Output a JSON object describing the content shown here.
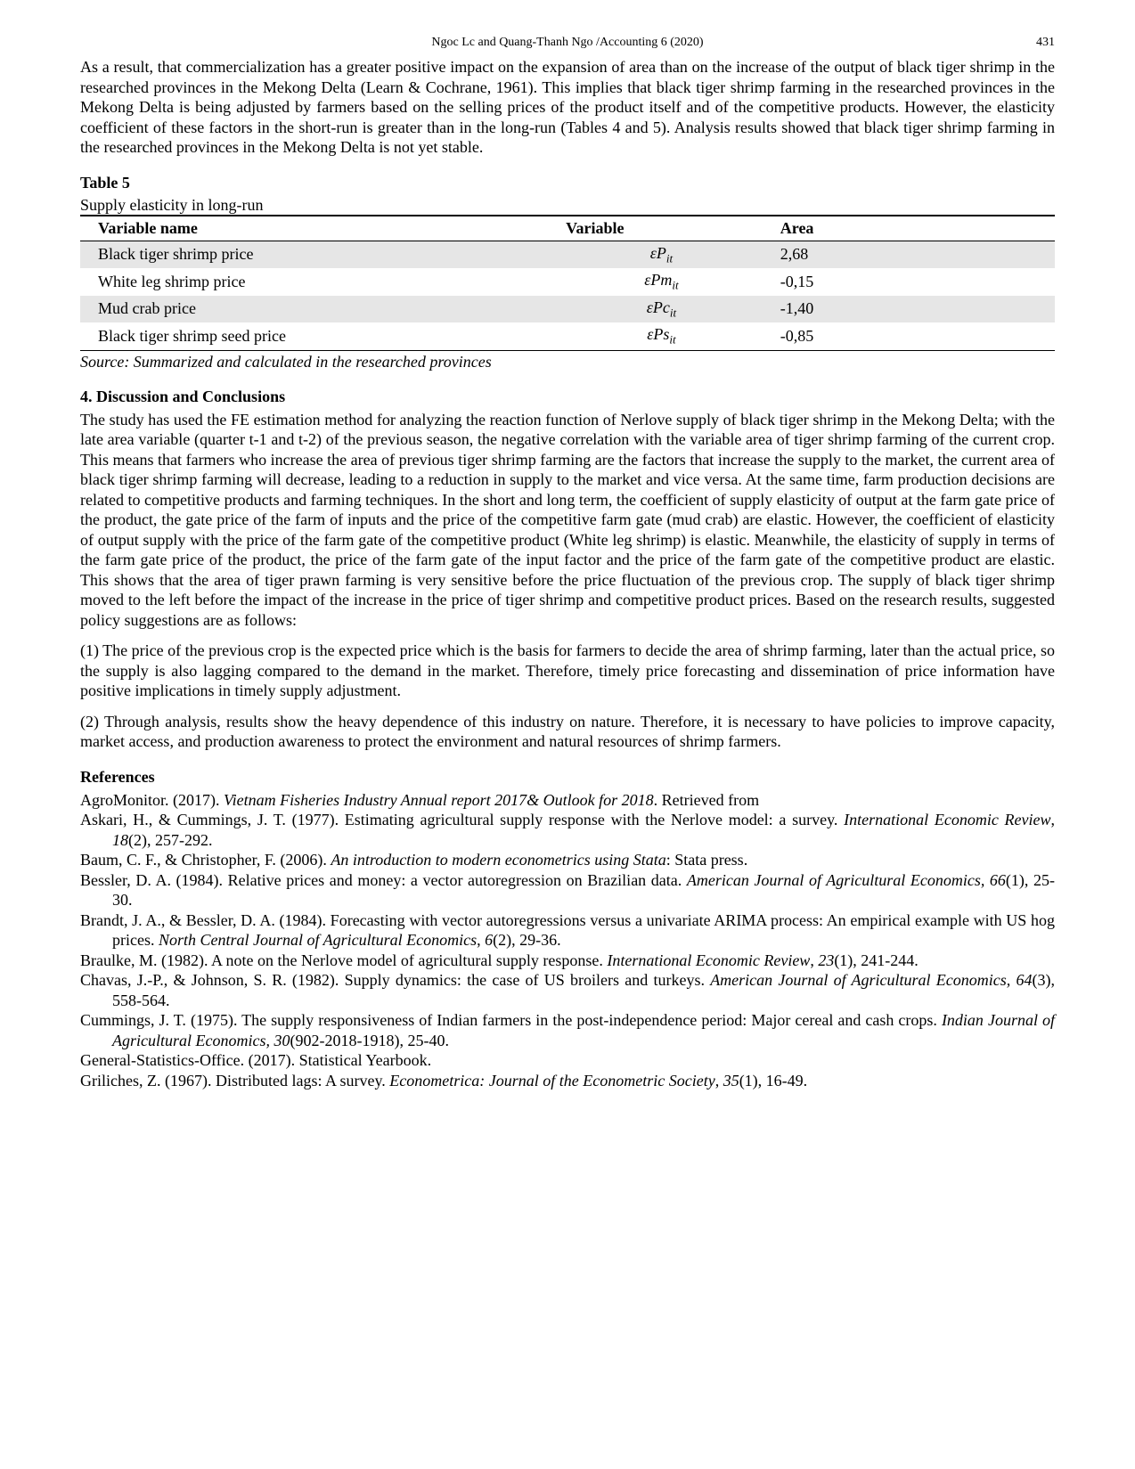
{
  "header": {
    "running": "Ngoc Lc and Quang-Thanh Ngo /Accounting 6 (2020)",
    "page": "431"
  },
  "para_intro": "As a result, that commercialization has a greater positive impact on the expansion of area than on the increase of the output of black tiger shrimp in the researched provinces in the Mekong Delta (Learn & Cochrane, 1961). This implies that black tiger shrimp farming in the researched provinces in the Mekong Delta is being adjusted by farmers based on the selling prices of the product itself and of the competitive products. However, the elasticity coefficient of these factors in the short-run is greater than in the long-run (Tables 4 and 5). Analysis results showed that black tiger shrimp farming in the researched provinces in the Mekong Delta is not yet stable.",
  "table5": {
    "label": "Table 5",
    "subcaption": "Supply elasticity in long-run",
    "headers": {
      "c1": "Variable name",
      "c2": "Variable",
      "c3": "Area"
    },
    "rows": [
      {
        "name": "Black tiger shrimp price",
        "sym_prefix": "ε",
        "sym_main": "P",
        "sym_sub": "it",
        "area": "2,68",
        "striped": true
      },
      {
        "name": "White leg shrimp price",
        "sym_prefix": "ε",
        "sym_main": "Pm",
        "sym_sub": "it",
        "area": "-0,15",
        "striped": false
      },
      {
        "name": "Mud crab price",
        "sym_prefix": "ε",
        "sym_main": "Pc",
        "sym_sub": "it",
        "area": "-1,40",
        "striped": true
      },
      {
        "name": "Black tiger shrimp seed price",
        "sym_prefix": "ε",
        "sym_main": "Ps",
        "sym_sub": "it",
        "area": "-0,85",
        "striped": false
      }
    ],
    "source": "Source: Summarized and calculated in the researched provinces",
    "stripe_color": "#e6e6e6",
    "border_color": "#000000"
  },
  "sections": {
    "discussion_title": "4. Discussion and Conclusions",
    "references_title": "References"
  },
  "discussion_p1": "The study has used the FE estimation method for analyzing the reaction function of Nerlove supply of black tiger shrimp in the Mekong Delta; with the late area variable (quarter t-1 and t-2) of the previous season, the negative correlation with the variable area of tiger shrimp farming of the current crop. This means that farmers who increase the area of previous tiger shrimp farming are the factors that increase the supply to the market, the current area of black tiger shrimp farming will decrease, leading to a reduction in supply to the market and vice versa. At the same time, farm production decisions are related to competitive products and farming techniques. In the short and long term, the coefficient of supply elasticity of output at the farm gate price of the product, the gate price of the farm of inputs and the price of the competitive farm gate (mud crab) are elastic. However, the coefficient of elasticity of output supply with the price of the farm gate of the competitive product (White leg shrimp) is elastic. Meanwhile, the elasticity of supply in terms of the farm gate price of the product, the price of the farm gate of the input factor and the price of the farm gate of the competitive product are elastic. This shows that the area of tiger prawn farming is very sensitive before the price fluctuation of the previous crop. The supply of black tiger shrimp moved to the left before the impact of the increase in the price of tiger shrimp and competitive product prices. Based on the research results, suggested policy suggestions are as follows:",
  "discussion_p2": "(1) The price of the previous crop is the expected price which is the basis for farmers to decide the area of shrimp farming, later than the actual price, so the supply is also lagging compared to the demand in the market. Therefore, timely price forecasting and dissemination of price information have positive implications in timely supply adjustment.",
  "discussion_p3": "(2) Through analysis, results show the heavy dependence of this industry on nature. Therefore, it is necessary to have policies to improve capacity, market access, and production awareness to protect the environment and natural resources of shrimp farmers.",
  "references": [
    {
      "pre": "AgroMonitor. (2017). ",
      "ital": "Vietnam Fisheries Industry Annual report 2017& Outlook for 2018",
      "post": ". Retrieved from"
    },
    {
      "pre": "Askari, H., & Cummings, J. T. (1977). Estimating agricultural supply response with the Nerlove model: a survey. ",
      "ital": "International Economic Review",
      "post": ", ",
      "ital2": "18",
      "post2": "(2), 257-292."
    },
    {
      "pre": "Baum, C. F., & Christopher, F. (2006). ",
      "ital": "An introduction to modern econometrics using Stata",
      "post": ": Stata press."
    },
    {
      "pre": "Bessler, D. A. (1984). Relative prices and money: a vector autoregression on Brazilian data. ",
      "ital": "American Journal of Agricultural Economics, 66",
      "post": "(1), 25-30."
    },
    {
      "pre": "Brandt, J. A., & Bessler, D. A. (1984). Forecasting with vector autoregressions versus a univariate ARIMA process: An empirical example with US hog prices. ",
      "ital": "North Central Journal of Agricultural Economics",
      "post": ", ",
      "ital2": "6",
      "post2": "(2), 29-36."
    },
    {
      "pre": "Braulke, M. (1982). A note on the Nerlove model of agricultural supply response. ",
      "ital": "International Economic Review",
      "post": ", ",
      "ital2": "23",
      "post2": "(1), 241-244."
    },
    {
      "pre": "Chavas, J.-P., & Johnson, S. R. (1982). Supply dynamics: the case of US broilers and turkeys. ",
      "ital": "American Journal of Agricultural Economics, 64",
      "post": "(3), 558-564."
    },
    {
      "pre": "Cummings, J. T. (1975). The supply responsiveness of Indian farmers in the post-independence period: Major cereal and cash crops. ",
      "ital": "Indian Journal of Agricultural Economics, 30",
      "post": "(902-2018-1918), 25-40."
    },
    {
      "pre": "General-Statistics-Office. (2017). Statistical Yearbook.",
      "ital": "",
      "post": ""
    },
    {
      "pre": "Griliches, Z. (1967). Distributed lags: A survey. ",
      "ital": "Econometrica: Journal of the Econometric Society",
      "post": ", ",
      "ital2": "35",
      "post2": "(1), 16-49."
    }
  ],
  "style": {
    "background": "#ffffff",
    "text_color": "#000000",
    "body_fontsize": 18,
    "header_fontsize": 14
  }
}
